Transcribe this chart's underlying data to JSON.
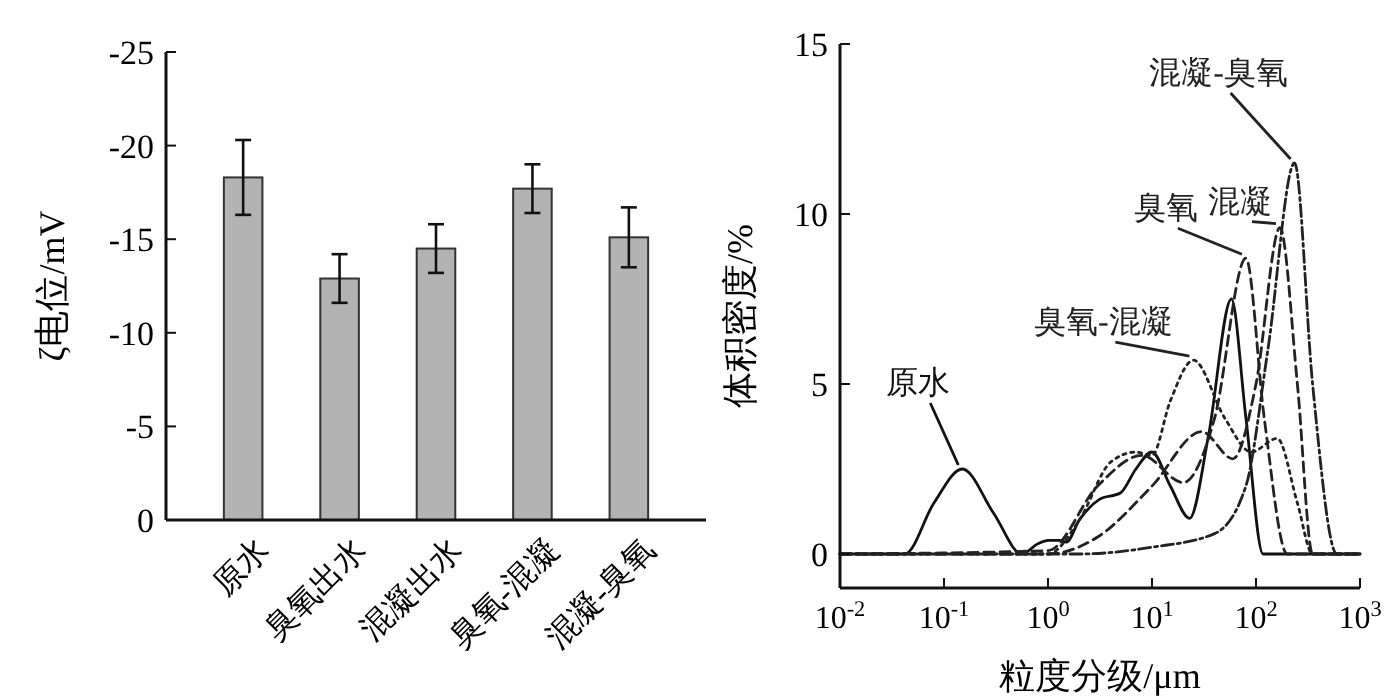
{
  "chart_data": [
    {
      "type": "bar",
      "ylabel": "ζ电位/mV",
      "categories": [
        "原水",
        "臭氧出水",
        "混凝出水",
        "臭氧-混凝",
        "混凝-臭氧"
      ],
      "values": [
        -18.3,
        -12.9,
        -14.5,
        -17.7,
        -15.1
      ],
      "errors": [
        2.0,
        1.3,
        1.3,
        1.3,
        1.6
      ],
      "color": "#b3b3b3",
      "ylim": [
        0,
        -25
      ],
      "yticks": [
        0,
        -5,
        -10,
        -15,
        -20,
        -25
      ],
      "grid": false
    },
    {
      "type": "line",
      "xlabel": "粒度分级/μm",
      "ylabel": "体积密度/%",
      "log": "x",
      "xlim": [
        0.01,
        1000
      ],
      "xticks": [
        {
          "value": 0.01,
          "label": "10$^{-2}$"
        },
        {
          "value": 0.1,
          "label": "10$^{-1}$"
        },
        {
          "value": 1,
          "label": "10$^{0}$"
        },
        {
          "value": 10,
          "label": "10$^{1}$"
        },
        {
          "value": 100,
          "label": "10$^{2}$"
        },
        {
          "value": 1000,
          "label": "10$^{3}$"
        }
      ],
      "ylim": [
        -1,
        15
      ],
      "yticks": [
        0,
        5,
        10,
        15
      ],
      "grid": false,
      "marker": "none",
      "series": [
        {
          "name": "原水",
          "color": "#111111",
          "line_style": "solid",
          "x": [
            0.01,
            0.042,
            0.08,
            0.15,
            0.3,
            0.56,
            0.8,
            1,
            1.3,
            1.5,
            2,
            3.1,
            5,
            7,
            10,
            15,
            23,
            35,
            58,
            80,
            117,
            1000
          ],
          "values": [
            0,
            0,
            1.5,
            2.5,
            1.2,
            0,
            0.3,
            0.4,
            0.4,
            0.35,
            1,
            1.6,
            1.8,
            2.5,
            3.0,
            2.0,
            1.05,
            3.5,
            7.5,
            4,
            0,
            0
          ]
        },
        {
          "name": "臭氧-混凝",
          "color": "#222222",
          "line_style": "dotted",
          "x": [
            0.01,
            1,
            2,
            4,
            7,
            10,
            15,
            25,
            50,
            90,
            160,
            250,
            350,
            1000
          ],
          "values": [
            0,
            0,
            1,
            2.7,
            3.0,
            2.9,
            4.5,
            5.7,
            4,
            3,
            3.4,
            1.5,
            0,
            0
          ]
        },
        {
          "name": "臭氧",
          "color": "#222222",
          "line_style": "dashed",
          "x": [
            0.01,
            1,
            3,
            8,
            20,
            40,
            80,
            120,
            200,
            1000
          ],
          "values": [
            0,
            0.1,
            2.0,
            2.9,
            2.1,
            4,
            8.7,
            4,
            0,
            0
          ]
        },
        {
          "name": "混凝",
          "color": "#222222",
          "line_style": "dashed",
          "x": [
            0.01,
            1,
            3,
            10,
            30,
            60,
            100,
            170,
            250,
            350,
            1000
          ],
          "values": [
            0,
            0,
            0.5,
            2,
            3.6,
            2.8,
            5,
            9.6,
            5,
            0,
            0
          ]
        },
        {
          "name": "混凝-臭氧",
          "color": "#222222",
          "line_style": "dashdot",
          "x": [
            0.01,
            2,
            10,
            40,
            80,
            130,
            235,
            350,
            600,
            1000
          ],
          "values": [
            0,
            0,
            0.2,
            0.6,
            2,
            6,
            11.5,
            5,
            0,
            0
          ]
        }
      ]
    }
  ]
}
